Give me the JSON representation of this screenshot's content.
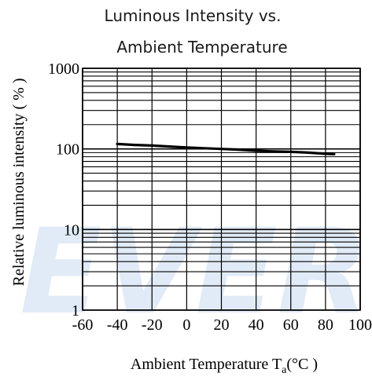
{
  "watermark": "EVER",
  "colors": {
    "grid": "#000000",
    "curve": "#000000",
    "watermark": "#dce8f6",
    "title": "#1a1a1a"
  },
  "chart_data": {
    "type": "line",
    "title_line1": "Luminous Intensity vs.",
    "title_line2": "Ambient Temperature",
    "xlabel_main": "Ambient Temperature T",
    "xlabel_sub": "a",
    "xlabel_unit": "(°C )",
    "ylabel": "Relative luminous intensity ( % )",
    "x_ticks": [
      "-60",
      "-40",
      "-20",
      "0",
      "20",
      "40",
      "60",
      "80",
      "100"
    ],
    "x_tick_values": [
      -60,
      -40,
      -20,
      0,
      20,
      40,
      60,
      80,
      100
    ],
    "y_ticks": [
      "1",
      "10",
      "100",
      "1000"
    ],
    "y_tick_values": [
      1,
      10,
      100,
      1000
    ],
    "xlim": [
      -60,
      100
    ],
    "ylim": [
      1,
      1000
    ],
    "y_scale": "log",
    "grid": true,
    "series": [
      {
        "x": [
          -40,
          -30,
          -20,
          -10,
          0,
          10,
          20,
          30,
          40,
          50,
          60,
          70,
          80,
          85
        ],
        "y": [
          115,
          112,
          110,
          107,
          104,
          102,
          100,
          98,
          95,
          93,
          92,
          90,
          87,
          86
        ]
      }
    ]
  }
}
